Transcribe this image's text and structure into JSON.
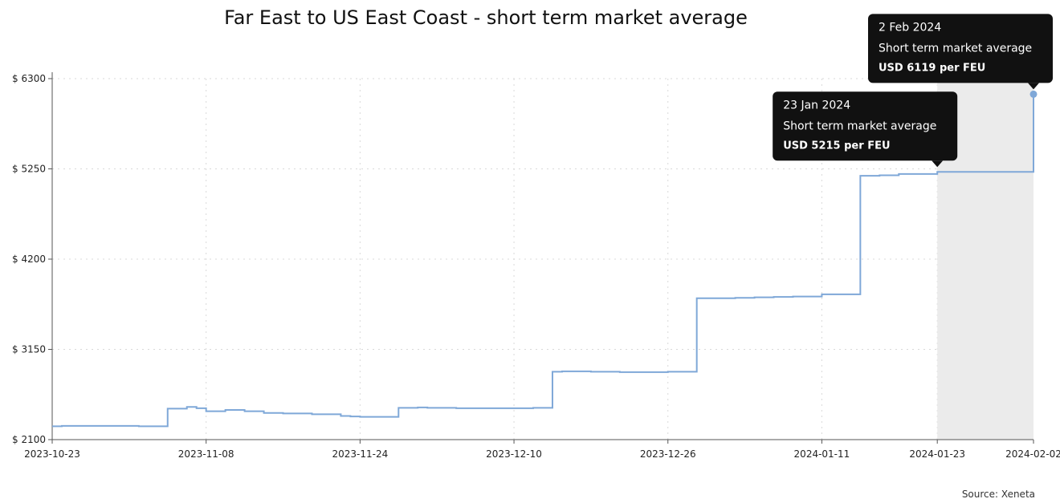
{
  "chart_data": {
    "type": "line",
    "title": "Far East to US East Coast - short term market average",
    "source": "Source: Xeneta",
    "ylim": [
      2100,
      6300
    ],
    "y_ticks": [
      6300,
      5250,
      4200,
      3150,
      2100
    ],
    "y_tick_labels": [
      "$ 6300",
      "$ 5250",
      "$ 4200",
      "$ 3150",
      "$ 2100"
    ],
    "x_range": [
      "2023-10-23",
      "2024-02-02"
    ],
    "x_ticks": [
      "2023-10-23",
      "2023-11-08",
      "2023-11-24",
      "2023-12-10",
      "2023-12-26",
      "2024-01-11",
      "2024-01-23",
      "2024-02-02"
    ],
    "grid": true,
    "line_color": "#7fa8d8",
    "highlight_range": [
      "2024-01-23",
      "2024-02-02"
    ],
    "highlight_color": "#ebebeb",
    "step": true,
    "series": [
      {
        "x": [
          "2023-10-23",
          "2023-10-24",
          "2023-10-31",
          "2023-11-01",
          "2023-11-04",
          "2023-11-05",
          "2023-11-06",
          "2023-11-07",
          "2023-11-08",
          "2023-11-10",
          "2023-11-12",
          "2023-11-14",
          "2023-11-16",
          "2023-11-19",
          "2023-11-22",
          "2023-11-23",
          "2023-11-24",
          "2023-11-26",
          "2023-11-28",
          "2023-11-30",
          "2023-12-01",
          "2023-12-04",
          "2023-12-07",
          "2023-12-10",
          "2023-12-12",
          "2023-12-14",
          "2023-12-15",
          "2023-12-18",
          "2023-12-21",
          "2023-12-26",
          "2023-12-27",
          "2023-12-29",
          "2023-12-30",
          "2024-01-02",
          "2024-01-04",
          "2024-01-06",
          "2024-01-08",
          "2024-01-11",
          "2024-01-14",
          "2024-01-15",
          "2024-01-17",
          "2024-01-19",
          "2024-01-23",
          "2024-01-26",
          "2024-02-01",
          "2024-02-02"
        ],
        "values": [
          2255,
          2260,
          2260,
          2255,
          2460,
          2460,
          2480,
          2465,
          2430,
          2445,
          2430,
          2410,
          2405,
          2395,
          2375,
          2370,
          2365,
          2365,
          2470,
          2475,
          2470,
          2465,
          2465,
          2465,
          2470,
          2890,
          2895,
          2890,
          2885,
          2890,
          2890,
          3745,
          3745,
          3750,
          3755,
          3760,
          3765,
          3790,
          3790,
          5170,
          5175,
          5190,
          5215,
          5215,
          5215,
          6119
        ]
      }
    ],
    "annotations": [
      {
        "date": "2 Feb 2024",
        "label": "Short term market average",
        "value_text": "USD 6119 per FEU",
        "x": "2024-02-02",
        "y": 6119
      },
      {
        "date": "23 Jan 2024",
        "label": "Short term market average",
        "value_text": "USD 5215 per FEU",
        "x": "2024-01-23",
        "y": 5215
      }
    ]
  }
}
